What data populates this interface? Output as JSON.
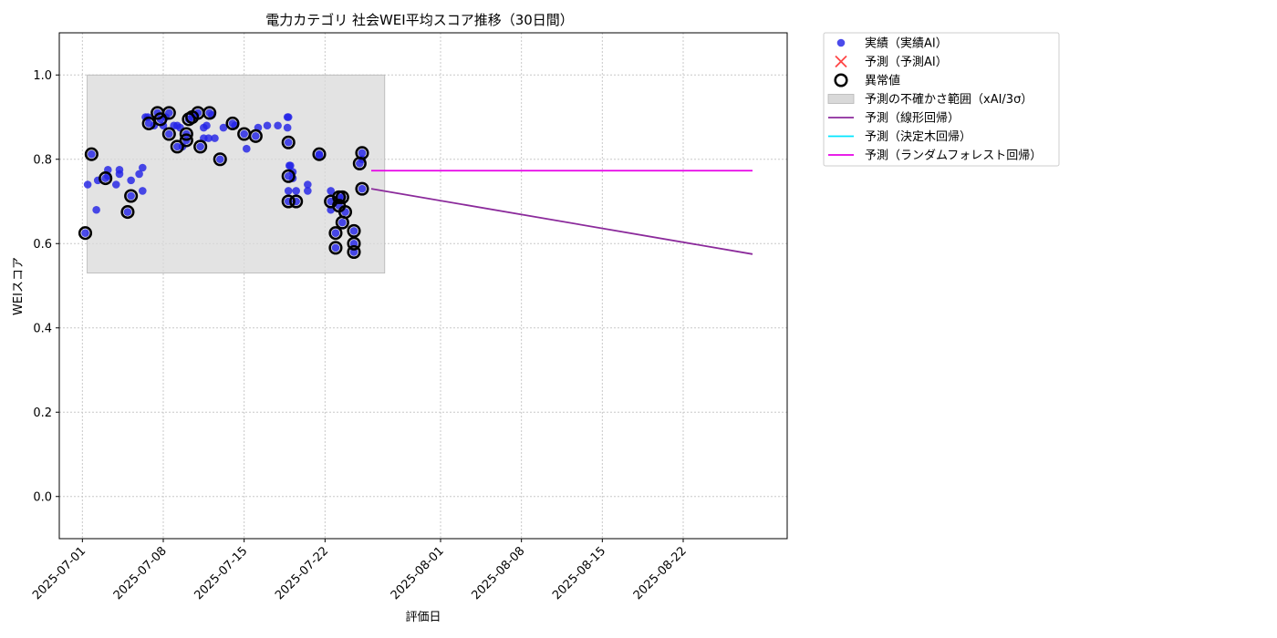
{
  "chart_data": {
    "type": "scatter",
    "title": "電力カテゴリ 社会WEI平均スコア推移（30日間）",
    "xlabel": "評価日",
    "ylabel": "WEIスコア",
    "xlim": [
      "2025-06-29",
      "2025-08-31"
    ],
    "ylim": [
      -0.1,
      1.1
    ],
    "x_ticks": [
      "2025-07-01",
      "2025-07-08",
      "2025-07-15",
      "2025-07-22",
      "2025-08-01",
      "2025-08-08",
      "2025-08-15",
      "2025-08-22"
    ],
    "y_ticks": [
      "0.0",
      "0.2",
      "0.4",
      "0.6",
      "0.8",
      "1.0"
    ],
    "grid": true,
    "legend_position": "outside top-right",
    "colors": {
      "actual": "#2323e6",
      "predicted_ai": "#ff4444",
      "anomaly": "#000000",
      "uncertainty": "#d9d9d9",
      "linear": "#8b2a9b",
      "decision_tree": "#00e5ff",
      "random_forest": "#e600e6"
    },
    "legend": [
      {
        "key": "actual",
        "label": "実績（実績AI）",
        "marker": "dot"
      },
      {
        "key": "predicted_ai",
        "label": "予測（予測AI）",
        "marker": "x"
      },
      {
        "key": "anomaly",
        "label": "異常値",
        "marker": "ring"
      },
      {
        "key": "uncertainty",
        "label": "予測の不確かさ範囲（xAI/3σ）",
        "marker": "rect"
      },
      {
        "key": "linear",
        "label": "予測（線形回帰）",
        "marker": "line"
      },
      {
        "key": "decision_tree",
        "label": "予測（決定木回帰）",
        "marker": "line"
      },
      {
        "key": "random_forest",
        "label": "予測（ランダムフォレスト回帰）",
        "marker": "line"
      }
    ],
    "uncertainty_band": {
      "x_start": "2025-07-01 10:00",
      "x_end": "2025-07-27 04:00",
      "y_low": 0.53,
      "y_high": 1.0
    },
    "actual_points": [
      [
        "2025-07-01 06:00",
        0.625
      ],
      [
        "2025-07-01 11:00",
        0.74
      ],
      [
        "2025-07-01 19:00",
        0.812
      ],
      [
        "2025-07-02 08:00",
        0.75
      ],
      [
        "2025-07-02 05:00",
        0.68
      ],
      [
        "2025-07-03 00:00",
        0.755
      ],
      [
        "2025-07-03 05:00",
        0.775
      ],
      [
        "2025-07-03 05:00",
        0.76
      ],
      [
        "2025-07-03 22:00",
        0.74
      ],
      [
        "2025-07-04 05:00",
        0.775
      ],
      [
        "2025-07-04 05:00",
        0.765
      ],
      [
        "2025-07-04 22:00",
        0.675
      ],
      [
        "2025-07-05 05:00",
        0.713
      ],
      [
        "2025-07-05 05:00",
        0.75
      ],
      [
        "2025-07-05 22:00",
        0.765
      ],
      [
        "2025-07-06 05:00",
        0.78
      ],
      [
        "2025-07-06 05:00",
        0.725
      ],
      [
        "2025-07-06 11:00",
        0.9
      ],
      [
        "2025-07-06 16:00",
        0.9
      ],
      [
        "2025-07-06 18:00",
        0.885
      ],
      [
        "2025-07-07 05:00",
        0.88
      ],
      [
        "2025-07-07 12:00",
        0.91
      ],
      [
        "2025-07-07 18:00",
        0.895
      ],
      [
        "2025-07-08 00:00",
        0.88
      ],
      [
        "2025-07-08 05:00",
        0.9
      ],
      [
        "2025-07-08 12:00",
        0.91
      ],
      [
        "2025-07-08 12:00",
        0.86
      ],
      [
        "2025-07-08 22:00",
        0.88
      ],
      [
        "2025-07-09 05:00",
        0.83
      ],
      [
        "2025-07-09 05:00",
        0.88
      ],
      [
        "2025-07-09 11:00",
        0.875
      ],
      [
        "2025-07-09 16:00",
        0.83
      ],
      [
        "2025-07-10 00:00",
        0.86
      ],
      [
        "2025-07-10 00:00",
        0.845
      ],
      [
        "2025-07-10 05:00",
        0.895
      ],
      [
        "2025-07-10 12:00",
        0.9
      ],
      [
        "2025-07-10 18:00",
        0.905
      ],
      [
        "2025-07-11 00:00",
        0.91
      ],
      [
        "2025-07-11 05:00",
        0.83
      ],
      [
        "2025-07-11 12:00",
        0.875
      ],
      [
        "2025-07-11 12:00",
        0.85
      ],
      [
        "2025-07-11 18:00",
        0.88
      ],
      [
        "2025-07-11 22:00",
        0.85
      ],
      [
        "2025-07-12 00:00",
        0.91
      ],
      [
        "2025-07-12 05:00",
        0.905
      ],
      [
        "2025-07-12 11:00",
        0.85
      ],
      [
        "2025-07-12 22:00",
        0.8
      ],
      [
        "2025-07-13 05:00",
        0.875
      ],
      [
        "2025-07-14 00:00",
        0.885
      ],
      [
        "2025-07-14 05:00",
        0.88
      ],
      [
        "2025-07-15 00:00",
        0.86
      ],
      [
        "2025-07-15 05:00",
        0.825
      ],
      [
        "2025-07-16 00:00",
        0.855
      ],
      [
        "2025-07-16 05:00",
        0.875
      ],
      [
        "2025-07-17 00:00",
        0.88
      ],
      [
        "2025-07-17 22:00",
        0.88
      ],
      [
        "2025-07-18 18:00",
        0.875
      ],
      [
        "2025-07-18 18:00",
        0.9
      ],
      [
        "2025-07-18 20:00",
        0.9
      ],
      [
        "2025-07-18 20:00",
        0.84
      ],
      [
        "2025-07-18 20:00",
        0.76
      ],
      [
        "2025-07-18 20:00",
        0.7
      ],
      [
        "2025-07-18 20:00",
        0.725
      ],
      [
        "2025-07-18 22:00",
        0.785
      ],
      [
        "2025-07-19 00:00",
        0.785
      ],
      [
        "2025-07-19 05:00",
        0.77
      ],
      [
        "2025-07-19 05:00",
        0.755
      ],
      [
        "2025-07-19 12:00",
        0.7
      ],
      [
        "2025-07-19 12:00",
        0.725
      ],
      [
        "2025-07-20 12:00",
        0.725
      ],
      [
        "2025-07-20 12:00",
        0.74
      ],
      [
        "2025-07-21 12:00",
        0.812
      ],
      [
        "2025-07-21 12:00",
        0.81
      ],
      [
        "2025-07-22 12:00",
        0.725
      ],
      [
        "2025-07-22 12:00",
        0.68
      ],
      [
        "2025-07-22 12:00",
        0.7
      ],
      [
        "2025-07-22 22:00",
        0.59
      ],
      [
        "2025-07-22 22:00",
        0.625
      ],
      [
        "2025-07-23 05:00",
        0.71
      ],
      [
        "2025-07-23 05:00",
        0.69
      ],
      [
        "2025-07-23 12:00",
        0.65
      ],
      [
        "2025-07-23 12:00",
        0.71
      ],
      [
        "2025-07-23 18:00",
        0.675
      ],
      [
        "2025-07-24 12:00",
        0.58
      ],
      [
        "2025-07-24 12:00",
        0.6
      ],
      [
        "2025-07-24 12:00",
        0.63
      ],
      [
        "2025-07-25 00:00",
        0.79
      ],
      [
        "2025-07-25 05:00",
        0.815
      ],
      [
        "2025-07-25 05:00",
        0.73
      ],
      [
        "2025-07-25 05:00",
        0.8
      ]
    ],
    "anomaly_points": [
      [
        "2025-07-01 06:00",
        0.625
      ],
      [
        "2025-07-01 19:00",
        0.812
      ],
      [
        "2025-07-03 00:00",
        0.755
      ],
      [
        "2025-07-04 22:00",
        0.675
      ],
      [
        "2025-07-05 05:00",
        0.713
      ],
      [
        "2025-07-06 18:00",
        0.885
      ],
      [
        "2025-07-07 12:00",
        0.91
      ],
      [
        "2025-07-07 18:00",
        0.895
      ],
      [
        "2025-07-08 12:00",
        0.91
      ],
      [
        "2025-07-08 12:00",
        0.86
      ],
      [
        "2025-07-09 05:00",
        0.83
      ],
      [
        "2025-07-10 00:00",
        0.86
      ],
      [
        "2025-07-10 00:00",
        0.845
      ],
      [
        "2025-07-10 05:00",
        0.895
      ],
      [
        "2025-07-10 12:00",
        0.9
      ],
      [
        "2025-07-11 00:00",
        0.91
      ],
      [
        "2025-07-11 05:00",
        0.83
      ],
      [
        "2025-07-12 00:00",
        0.91
      ],
      [
        "2025-07-12 22:00",
        0.8
      ],
      [
        "2025-07-14 00:00",
        0.885
      ],
      [
        "2025-07-15 00:00",
        0.86
      ],
      [
        "2025-07-16 00:00",
        0.855
      ],
      [
        "2025-07-18 20:00",
        0.84
      ],
      [
        "2025-07-18 20:00",
        0.76
      ],
      [
        "2025-07-18 20:00",
        0.7
      ],
      [
        "2025-07-19 12:00",
        0.7
      ],
      [
        "2025-07-21 12:00",
        0.812
      ],
      [
        "2025-07-22 12:00",
        0.7
      ],
      [
        "2025-07-22 22:00",
        0.59
      ],
      [
        "2025-07-22 22:00",
        0.625
      ],
      [
        "2025-07-23 05:00",
        0.71
      ],
      [
        "2025-07-23 05:00",
        0.69
      ],
      [
        "2025-07-23 12:00",
        0.65
      ],
      [
        "2025-07-23 12:00",
        0.71
      ],
      [
        "2025-07-23 18:00",
        0.675
      ],
      [
        "2025-07-24 12:00",
        0.58
      ],
      [
        "2025-07-24 12:00",
        0.6
      ],
      [
        "2025-07-24 12:00",
        0.63
      ],
      [
        "2025-07-25 00:00",
        0.79
      ],
      [
        "2025-07-25 05:00",
        0.815
      ],
      [
        "2025-07-25 05:00",
        0.73
      ]
    ],
    "linear_regression": [
      [
        "2025-07-26 00:00",
        0.73
      ],
      [
        "2025-08-28 00:00",
        0.575
      ]
    ],
    "random_forest": [
      [
        "2025-07-26 00:00",
        0.773
      ],
      [
        "2025-08-28 00:00",
        0.773
      ]
    ]
  }
}
